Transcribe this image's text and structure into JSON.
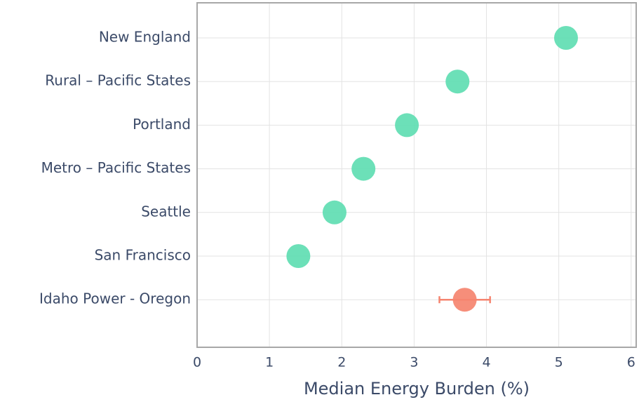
{
  "chart_data": {
    "type": "dot",
    "x_label": "Median Energy Burden (%)",
    "categories": [
      "New England",
      "Rural – Pacific States",
      "Portland",
      "Metro – Pacific States",
      "Seattle",
      "San Francisco",
      "Idaho Power - Oregon"
    ],
    "series": [
      {
        "color": "#5fddb2",
        "values": [
          5.1,
          3.6,
          2.9,
          2.3,
          1.9,
          1.4,
          null
        ]
      },
      {
        "color": "#f5846f",
        "values": [
          null,
          null,
          null,
          null,
          null,
          null,
          3.7
        ],
        "errors": [
          null,
          null,
          null,
          null,
          null,
          null,
          0.35
        ]
      }
    ],
    "xlim": [
      0,
      6.07
    ],
    "xticks": [
      0,
      1,
      2,
      3,
      4,
      5,
      6
    ],
    "grid": true
  }
}
